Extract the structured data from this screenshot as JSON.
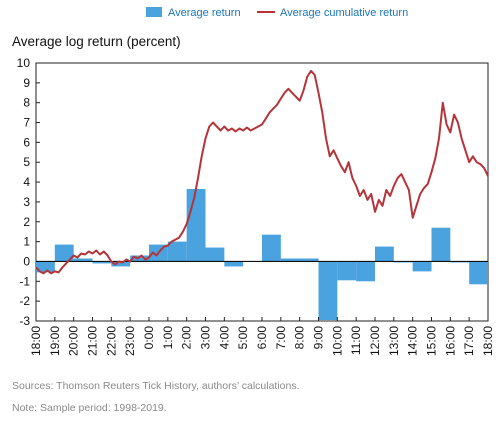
{
  "chart_data": {
    "type": "bar+line",
    "ylabel": "Average log return (percent)",
    "ylim": [
      -3,
      10
    ],
    "yticks": [
      "10",
      "9",
      "8",
      "7",
      "6",
      "5",
      "4",
      "3",
      "2",
      "1",
      "0",
      "-1",
      "-2",
      "-3"
    ],
    "legend": {
      "placement": "top-center",
      "bar_label": "Average return",
      "line_label": "Average cumulative return"
    },
    "x_ticks": [
      "18:00",
      "19:00",
      "20:00",
      "21:00",
      "22:00",
      "23:00",
      "0:00",
      "1:00",
      "2:00",
      "3:00",
      "4:00",
      "5:00",
      "6:00",
      "7:00",
      "8:00",
      "9:00",
      "10:00",
      "11:00",
      "12:00",
      "13:00",
      "14:00",
      "15:00",
      "16:00",
      "17:00",
      "18:00"
    ],
    "colors": {
      "bar": "#4aa3df",
      "line": "#b5343a",
      "legend_text": "#1b75bb"
    },
    "bars": [
      {
        "start": 0,
        "end": 1,
        "value": -0.55
      },
      {
        "start": 1,
        "end": 2,
        "value": 0.85
      },
      {
        "start": 2,
        "end": 3,
        "value": 0.15
      },
      {
        "start": 3,
        "end": 4,
        "value": -0.1
      },
      {
        "start": 4,
        "end": 5,
        "value": -0.25
      },
      {
        "start": 5,
        "end": 6,
        "value": 0.3
      },
      {
        "start": 6,
        "end": 7,
        "value": 0.85
      },
      {
        "start": 7,
        "end": 8,
        "value": 1.0
      },
      {
        "start": 8,
        "end": 9,
        "value": 3.65
      },
      {
        "start": 9,
        "end": 10,
        "value": 0.7
      },
      {
        "start": 10,
        "end": 11,
        "value": -0.25
      },
      {
        "start": 12,
        "end": 13,
        "value": 1.35
      },
      {
        "start": 13,
        "end": 15,
        "value": 0.15
      },
      {
        "start": 15,
        "end": 16,
        "value": -2.95
      },
      {
        "start": 16,
        "end": 17,
        "value": -0.95
      },
      {
        "start": 17,
        "end": 18,
        "value": -1.0
      },
      {
        "start": 18,
        "end": 19,
        "value": 0.75
      },
      {
        "start": 19,
        "end": 20,
        "value": -0.05
      },
      {
        "start": 20,
        "end": 21,
        "value": -0.5
      },
      {
        "start": 21,
        "end": 22,
        "value": 1.7
      },
      {
        "start": 22,
        "end": 23,
        "value": -0.05
      },
      {
        "start": 23,
        "end": 24,
        "value": -1.15
      }
    ],
    "line": [
      [
        0.0,
        -0.3
      ],
      [
        0.2,
        -0.5
      ],
      [
        0.4,
        -0.6
      ],
      [
        0.6,
        -0.45
      ],
      [
        0.8,
        -0.6
      ],
      [
        1.0,
        -0.5
      ],
      [
        1.2,
        -0.55
      ],
      [
        1.4,
        -0.3
      ],
      [
        1.6,
        -0.1
      ],
      [
        1.8,
        0.1
      ],
      [
        2.0,
        0.3
      ],
      [
        2.2,
        0.2
      ],
      [
        2.4,
        0.4
      ],
      [
        2.6,
        0.35
      ],
      [
        2.8,
        0.5
      ],
      [
        3.0,
        0.4
      ],
      [
        3.2,
        0.55
      ],
      [
        3.4,
        0.35
      ],
      [
        3.6,
        0.5
      ],
      [
        3.8,
        0.3
      ],
      [
        4.0,
        0.0
      ],
      [
        4.2,
        -0.15
      ],
      [
        4.4,
        0.0
      ],
      [
        4.6,
        -0.05
      ],
      [
        4.8,
        0.1
      ],
      [
        5.0,
        0.0
      ],
      [
        5.2,
        0.25
      ],
      [
        5.4,
        0.15
      ],
      [
        5.6,
        0.3
      ],
      [
        5.8,
        0.1
      ],
      [
        6.0,
        0.2
      ],
      [
        6.2,
        0.45
      ],
      [
        6.4,
        0.3
      ],
      [
        6.6,
        0.55
      ],
      [
        6.8,
        0.75
      ],
      [
        7.0,
        0.8
      ],
      [
        7.2,
        1.0
      ],
      [
        7.4,
        1.1
      ],
      [
        7.6,
        1.2
      ],
      [
        7.8,
        1.5
      ],
      [
        8.0,
        1.9
      ],
      [
        8.2,
        2.5
      ],
      [
        8.4,
        3.2
      ],
      [
        8.6,
        4.2
      ],
      [
        8.8,
        5.3
      ],
      [
        9.0,
        6.2
      ],
      [
        9.2,
        6.8
      ],
      [
        9.4,
        7.0
      ],
      [
        9.6,
        6.8
      ],
      [
        9.8,
        6.6
      ],
      [
        10.0,
        6.8
      ],
      [
        10.2,
        6.6
      ],
      [
        10.4,
        6.7
      ],
      [
        10.6,
        6.55
      ],
      [
        10.8,
        6.7
      ],
      [
        11.0,
        6.6
      ],
      [
        11.2,
        6.75
      ],
      [
        11.4,
        6.6
      ],
      [
        11.6,
        6.7
      ],
      [
        11.8,
        6.8
      ],
      [
        12.0,
        6.9
      ],
      [
        12.2,
        7.2
      ],
      [
        12.4,
        7.5
      ],
      [
        12.6,
        7.7
      ],
      [
        12.8,
        7.9
      ],
      [
        13.0,
        8.2
      ],
      [
        13.2,
        8.5
      ],
      [
        13.4,
        8.7
      ],
      [
        13.6,
        8.5
      ],
      [
        13.8,
        8.3
      ],
      [
        14.0,
        8.1
      ],
      [
        14.2,
        8.6
      ],
      [
        14.4,
        9.3
      ],
      [
        14.6,
        9.6
      ],
      [
        14.8,
        9.4
      ],
      [
        15.0,
        8.5
      ],
      [
        15.2,
        7.5
      ],
      [
        15.4,
        6.2
      ],
      [
        15.6,
        5.3
      ],
      [
        15.8,
        5.6
      ],
      [
        16.0,
        5.2
      ],
      [
        16.2,
        4.8
      ],
      [
        16.4,
        4.5
      ],
      [
        16.6,
        5.0
      ],
      [
        16.8,
        4.2
      ],
      [
        17.0,
        3.8
      ],
      [
        17.2,
        3.3
      ],
      [
        17.4,
        3.6
      ],
      [
        17.6,
        3.1
      ],
      [
        17.8,
        3.4
      ],
      [
        18.0,
        2.5
      ],
      [
        18.2,
        3.1
      ],
      [
        18.4,
        2.8
      ],
      [
        18.6,
        3.6
      ],
      [
        18.8,
        3.3
      ],
      [
        19.0,
        3.8
      ],
      [
        19.2,
        4.2
      ],
      [
        19.4,
        4.4
      ],
      [
        19.6,
        4.0
      ],
      [
        19.8,
        3.6
      ],
      [
        20.0,
        2.2
      ],
      [
        20.2,
        2.8
      ],
      [
        20.4,
        3.4
      ],
      [
        20.6,
        3.7
      ],
      [
        20.8,
        3.9
      ],
      [
        21.0,
        4.5
      ],
      [
        21.2,
        5.2
      ],
      [
        21.4,
        6.2
      ],
      [
        21.6,
        8.0
      ],
      [
        21.8,
        6.9
      ],
      [
        22.0,
        6.5
      ],
      [
        22.2,
        7.4
      ],
      [
        22.4,
        7.0
      ],
      [
        22.6,
        6.2
      ],
      [
        22.8,
        5.6
      ],
      [
        23.0,
        5.0
      ],
      [
        23.2,
        5.3
      ],
      [
        23.4,
        5.0
      ],
      [
        23.6,
        4.9
      ],
      [
        23.8,
        4.7
      ],
      [
        24.0,
        4.3
      ]
    ]
  },
  "notes": {
    "sources": "Sources: Thomson Reuters Tick History, authors’ calculations.",
    "sample": "Note: Sample period: 1998-2019."
  }
}
